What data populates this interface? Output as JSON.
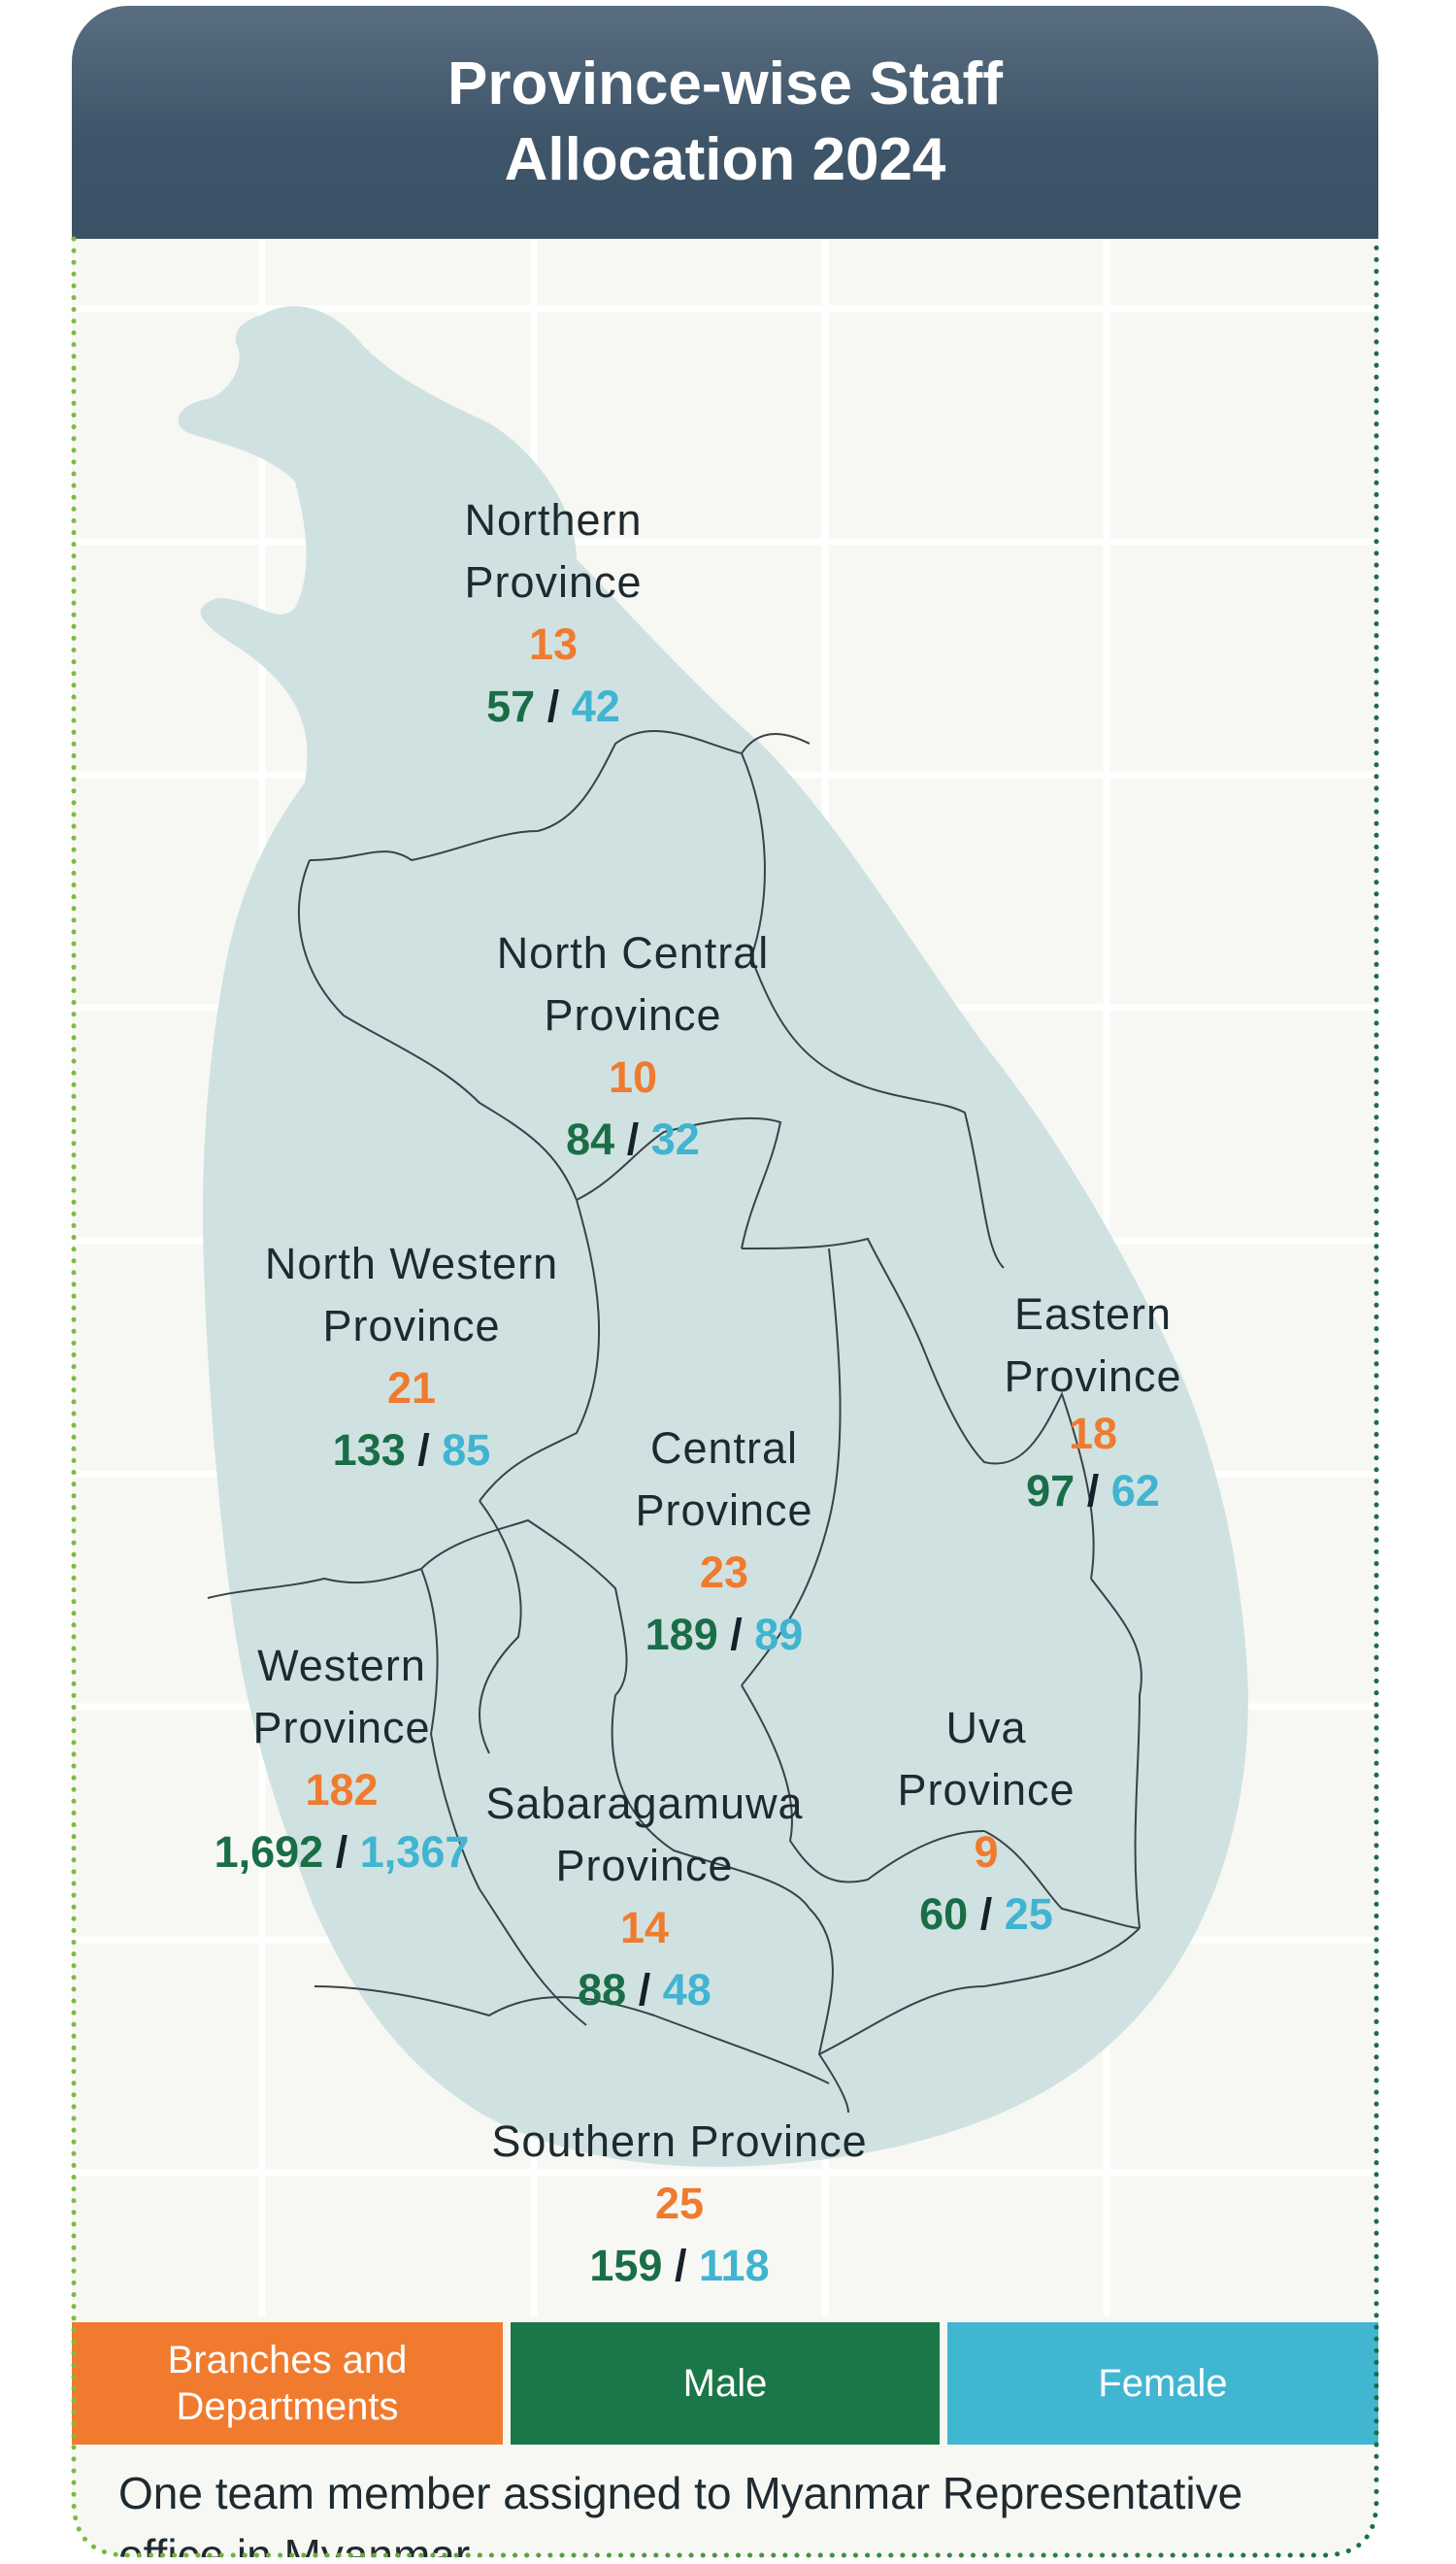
{
  "title": "Province-wise Staff Allocation 2024",
  "provinces": [
    {
      "name": "Northern Province",
      "branches": "13",
      "male": "57",
      "female": "42"
    },
    {
      "name": "North Central Province",
      "branches": "10",
      "male": "84",
      "female": "32"
    },
    {
      "name": "North Western Province",
      "branches": "21",
      "male": "133",
      "female": "85"
    },
    {
      "name": "Eastern Province",
      "branches": "18",
      "male": "97",
      "female": "62"
    },
    {
      "name": "Central Province",
      "branches": "23",
      "male": "189",
      "female": "89"
    },
    {
      "name": "Western Province",
      "branches": "182",
      "male": "1,692",
      "female": "1,367"
    },
    {
      "name": "Uva Province",
      "branches": "9",
      "male": "60",
      "female": "25"
    },
    {
      "name": "Sabaragamuwa Province",
      "branches": "14",
      "male": "88",
      "female": "48"
    },
    {
      "name": "Southern Province",
      "branches": "25",
      "male": "159",
      "female": "118"
    }
  ],
  "separator": "/",
  "legend": [
    {
      "label": "Branches and Departments",
      "color": "#f07b2f"
    },
    {
      "label": "Male",
      "color": "#1a7748"
    },
    {
      "label": "Female",
      "color": "#41b6d1"
    }
  ],
  "footnote": "One team member assigned to Myanmar Representative office in Myanmar."
}
